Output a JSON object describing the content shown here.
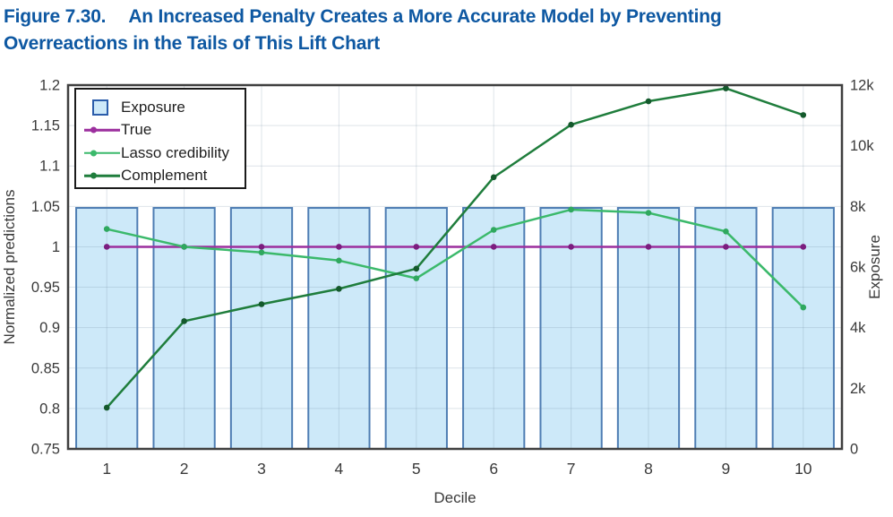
{
  "title": {
    "figure_label": "Figure 7.30.",
    "line1": "An Increased Penalty Creates a More Accurate Model by Preventing",
    "line2": "Overreactions in the Tails of This Lift Chart",
    "color": "#0e58a2"
  },
  "legend": {
    "items": [
      {
        "label": "Exposure",
        "type": "bar-swatch",
        "fill": "#cde9f9",
        "border": "#2b5dab"
      },
      {
        "label": "True",
        "type": "line",
        "color": "#9c2f9e"
      },
      {
        "label": "Lasso credibility",
        "type": "line",
        "color": "#3bb96b"
      },
      {
        "label": "Complement",
        "type": "line",
        "color": "#1f7d3c"
      }
    ]
  },
  "chart_data": {
    "type": "bar+line",
    "categories": [
      "1",
      "2",
      "3",
      "4",
      "5",
      "6",
      "7",
      "8",
      "9",
      "10"
    ],
    "xlabel": "Decile",
    "left_axis": {
      "label": "Normalized predictions",
      "min": 0.75,
      "max": 1.2,
      "ticks": [
        0.75,
        0.8,
        0.85,
        0.9,
        0.95,
        1,
        1.05,
        1.1,
        1.15,
        1.2
      ],
      "tick_labels": [
        "0.75",
        "0.8",
        "0.85",
        "0.9",
        "0.95",
        "1",
        "1.05",
        "1.1",
        "1.15",
        "1.2"
      ]
    },
    "right_axis": {
      "label": "Exposure",
      "min": 0,
      "max": 12000,
      "ticks": [
        0,
        2000,
        4000,
        6000,
        8000,
        10000,
        12000
      ],
      "tick_labels": [
        "0",
        "2k",
        "4k",
        "6k",
        "8k",
        "10k",
        "12k"
      ]
    },
    "bars": {
      "name": "Exposure",
      "axis": "right",
      "values": [
        7950,
        7950,
        7950,
        7950,
        7950,
        7950,
        7950,
        7950,
        7950,
        7950
      ],
      "fill": "#cde9f9",
      "border": "#4e7db3"
    },
    "series": [
      {
        "name": "True",
        "axis": "left",
        "color": "#9c2f9e",
        "marker_color": "#7b1d7f",
        "values": [
          1,
          1,
          1,
          1,
          1,
          1,
          1,
          1,
          1,
          1
        ]
      },
      {
        "name": "Lasso credibility",
        "axis": "left",
        "color": "#3bb96b",
        "marker_color": "#2fa85f",
        "values": [
          1.022,
          1.0,
          0.993,
          0.983,
          0.961,
          1.021,
          1.046,
          1.042,
          1.019,
          0.925
        ]
      },
      {
        "name": "Complement",
        "axis": "left",
        "color": "#1f7d3c",
        "marker_color": "#14592c",
        "values": [
          0.801,
          0.908,
          0.929,
          0.948,
          0.973,
          1.086,
          1.151,
          1.18,
          1.196,
          1.163
        ]
      }
    ],
    "grid": true,
    "grid_color": "rgba(104,130,156,0.22)",
    "plot_border_color": "#3f3f3f",
    "tick_text_color": "#3a3a3a",
    "legend_position": "top-left inside"
  }
}
